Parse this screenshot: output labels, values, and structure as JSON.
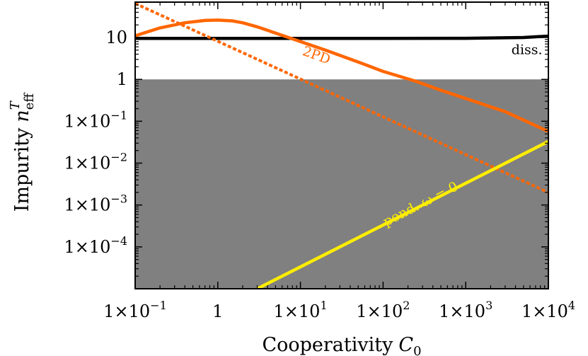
{
  "chart_data": {
    "type": "line",
    "xlabel_text": "Cooperativity",
    "xlabel_symbol": "C",
    "xlabel_sub": "0",
    "ylabel_text": "Impurity",
    "ylabel_symbol": "n",
    "ylabel_sup": "T",
    "ylabel_sub": "eff",
    "x_scale": "log",
    "y_scale": "log",
    "xlim": [
      0.1,
      10000
    ],
    "ylim": [
      1e-05,
      70
    ],
    "grid": false,
    "x_ticks": [
      {
        "value": 0.1,
        "base": "1×10",
        "exp": "−1"
      },
      {
        "value": 1,
        "base": "1",
        "exp": ""
      },
      {
        "value": 10,
        "base": "1×10",
        "exp": "1"
      },
      {
        "value": 100,
        "base": "1×10",
        "exp": "2"
      },
      {
        "value": 1000,
        "base": "1×10",
        "exp": "3"
      },
      {
        "value": 10000,
        "base": "1×10",
        "exp": "4"
      }
    ],
    "y_ticks": [
      {
        "value": 0.0001,
        "base": "1×10",
        "exp": "−4"
      },
      {
        "value": 0.001,
        "base": "1×10",
        "exp": "−3"
      },
      {
        "value": 0.01,
        "base": "1×10",
        "exp": "−2"
      },
      {
        "value": 0.1,
        "base": "1×10",
        "exp": "−1"
      },
      {
        "value": 1,
        "base": "1",
        "exp": ""
      },
      {
        "value": 10,
        "base": "10",
        "exp": ""
      }
    ],
    "shaded_region": {
      "y_from": 1e-05,
      "y_to": 1,
      "color": "#808080"
    },
    "series": [
      {
        "key": "diss",
        "color": "#000000",
        "dash": false,
        "x": [
          0.1,
          1,
          10,
          100,
          1000,
          5000,
          10000
        ],
        "y": [
          9.5,
          9.5,
          9.5,
          9.5,
          9.6,
          10.0,
          10.8
        ]
      },
      {
        "key": "2pd",
        "color": "#ff6600",
        "dash": false,
        "x": [
          0.1,
          0.2,
          0.4,
          0.7,
          1,
          1.5,
          2,
          3,
          5,
          10,
          20,
          50,
          100,
          250,
          500,
          1000,
          3000,
          10000
        ],
        "y": [
          11.0,
          17.0,
          22.5,
          25.5,
          26.0,
          25.0,
          22.5,
          18.0,
          12.8,
          8.0,
          5.0,
          2.6,
          1.55,
          0.9,
          0.55,
          0.35,
          0.17,
          0.057
        ]
      },
      {
        "key": "2pd-asymptote",
        "color": "#ff6600",
        "dash": true,
        "x": [
          0.1,
          10000
        ],
        "y": [
          65,
          0.002
        ]
      },
      {
        "key": "pond",
        "color": "#ffee00",
        "dash": false,
        "x": [
          3,
          10000
        ],
        "y": [
          1e-05,
          0.033
        ]
      }
    ],
    "annotations": [
      {
        "key": "diss",
        "text": "diss.",
        "x": 5500,
        "y": 4.0,
        "color": "#000000",
        "rotate": 0
      },
      {
        "key": "2pd",
        "text": "2PD",
        "x": 15,
        "y": 3.0,
        "color": "#ff6600",
        "rotate": 20
      },
      {
        "key": "pond",
        "text": "pond. ω = 0",
        "x": 300,
        "y": 0.00085,
        "color": "#ffee00",
        "rotate": -27
      }
    ]
  }
}
